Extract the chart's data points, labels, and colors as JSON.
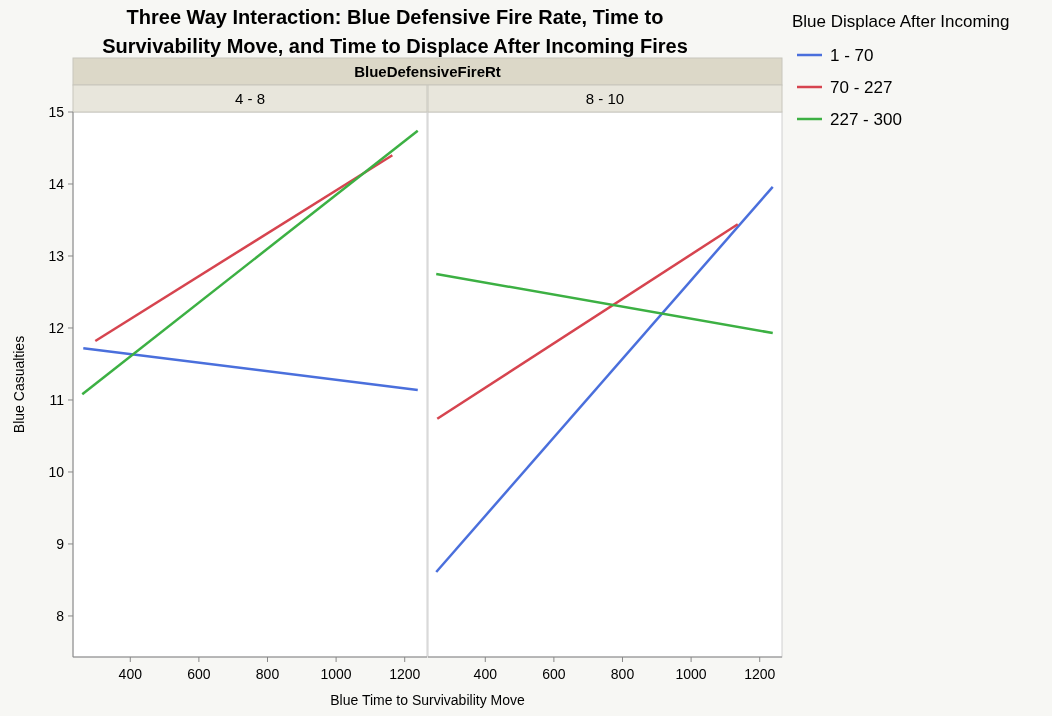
{
  "chart_data": [
    {
      "type": "line",
      "title": "Three Way Interaction: Blue Defensive Fire Rate, Time to Survivability Move, and Time to Displace After Incoming Fires",
      "subtitle": "BlueDefensiveFireRt",
      "annotations": [
        "4 - 8"
      ],
      "xlabel": "Blue Time to Survivability Move",
      "ylabel": "Blue Casualties",
      "legend_title": "Blue Displace After Incoming",
      "legend": "right",
      "grid": false,
      "marker": "none",
      "line_style": "solid",
      "xlim": [
        233,
        1265
      ],
      "xticks": [
        400,
        600,
        800,
        1000,
        1200
      ],
      "ylim": [
        7.43,
        15
      ],
      "yticks": [
        8,
        9,
        10,
        11,
        12,
        13,
        14,
        15
      ],
      "series": [
        {
          "name": "1 - 70",
          "color": "#4a6fdc",
          "x": [
            263,
            1238
          ],
          "values": [
            11.72,
            11.14
          ]
        },
        {
          "name": "70 - 227",
          "color": "#d6444f",
          "x": [
            298,
            1164
          ],
          "values": [
            11.82,
            14.4
          ]
        },
        {
          "name": "227 - 300",
          "color": "#3cb043",
          "x": [
            260,
            1238
          ],
          "values": [
            11.08,
            14.74
          ]
        }
      ]
    },
    {
      "type": "line",
      "annotations": [
        "8 - 10"
      ],
      "tick_labels": "x",
      "grid": false,
      "marker": "none",
      "line_style": "solid",
      "xlim": [
        233,
        1265
      ],
      "xticks": [
        400,
        600,
        800,
        1000,
        1200
      ],
      "ylim": [
        7.43,
        15
      ],
      "series": [
        {
          "color": "#4a6fdc",
          "x": [
            257,
            1238
          ],
          "values": [
            8.61,
            13.96
          ]
        },
        {
          "color": "#d6444f",
          "x": [
            260,
            1136
          ],
          "values": [
            10.74,
            13.44
          ]
        },
        {
          "color": "#3cb043",
          "x": [
            257,
            1238
          ],
          "values": [
            12.75,
            11.93
          ]
        }
      ]
    }
  ]
}
